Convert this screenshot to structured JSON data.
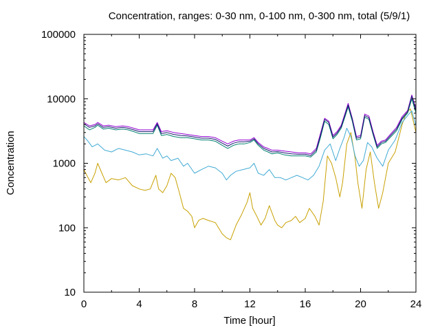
{
  "chart_data": {
    "type": "line",
    "title": "Concentration, ranges: 0-30 nm, 0-100 nm, 0-300 nm, total (5/9/1)",
    "xlabel": "Time [hour]",
    "ylabel": "Concentration",
    "xlim": [
      0,
      24
    ],
    "ylim": [
      10,
      100000
    ],
    "yscale": "log",
    "grid": false,
    "legend": "none",
    "x_ticks": [
      {
        "value": 0,
        "label": "0"
      },
      {
        "value": 4,
        "label": "4"
      },
      {
        "value": 8,
        "label": "8"
      },
      {
        "value": 12,
        "label": "12"
      },
      {
        "value": 16,
        "label": "16"
      },
      {
        "value": 20,
        "label": "20"
      },
      {
        "value": 24,
        "label": "24"
      }
    ],
    "y_ticks": [
      {
        "value": 10,
        "label": "10"
      },
      {
        "value": 100,
        "label": "100"
      },
      {
        "value": 1000,
        "label": "1000"
      },
      {
        "value": 10000,
        "label": "10000"
      },
      {
        "value": 100000,
        "label": "100000"
      }
    ],
    "series": [
      {
        "color": "#c8a000",
        "x": [
          0,
          0.3,
          0.5,
          0.8,
          1.0,
          1.3,
          1.6,
          2.0,
          2.5,
          3.0,
          3.5,
          4.0,
          4.4,
          4.8,
          5.2,
          5.4,
          5.7,
          6.0,
          6.3,
          6.6,
          6.9,
          7.2,
          7.5,
          7.8,
          8.0,
          8.3,
          8.6,
          9.0,
          9.5,
          10.0,
          10.3,
          10.6,
          11.0,
          11.4,
          11.8,
          12.0,
          12.2,
          12.5,
          12.8,
          13.1,
          13.4,
          13.8,
          14.0,
          14.3,
          14.6,
          15.0,
          15.3,
          15.6,
          16.0,
          16.3,
          16.7,
          17.0,
          17.3,
          17.6,
          17.9,
          18.2,
          18.5,
          18.7,
          19.0,
          19.3,
          19.6,
          19.8,
          20.1,
          20.4,
          20.7,
          21.0,
          21.3,
          21.6,
          22.0,
          22.5,
          23.0,
          23.3,
          23.6,
          24.0
        ],
        "y": [
          800,
          600,
          500,
          700,
          1000,
          700,
          500,
          580,
          550,
          600,
          450,
          400,
          380,
          400,
          650,
          400,
          350,
          450,
          700,
          600,
          350,
          200,
          180,
          150,
          100,
          130,
          140,
          130,
          120,
          80,
          70,
          65,
          110,
          160,
          250,
          350,
          200,
          150,
          110,
          140,
          220,
          130,
          110,
          100,
          120,
          130,
          150,
          120,
          140,
          200,
          150,
          110,
          260,
          1300,
          1000,
          600,
          300,
          500,
          2000,
          3000,
          1200,
          500,
          200,
          800,
          1500,
          500,
          200,
          350,
          1000,
          1500,
          4000,
          6000,
          7000,
          3000
        ]
      },
      {
        "color": "#40aad4",
        "x": [
          0,
          0.3,
          0.6,
          1.0,
          1.5,
          2.0,
          2.5,
          3.0,
          3.5,
          4.0,
          4.5,
          5.0,
          5.3,
          5.7,
          6.0,
          6.3,
          6.8,
          7.2,
          7.5,
          8.0,
          8.5,
          9.0,
          9.5,
          10.0,
          10.3,
          10.6,
          11.0,
          11.5,
          12.0,
          12.3,
          12.6,
          13.0,
          13.4,
          13.8,
          14.2,
          14.6,
          15.0,
          15.4,
          15.8,
          16.2,
          16.6,
          17.0,
          17.4,
          17.8,
          18.2,
          18.5,
          18.8,
          19.0,
          19.3,
          19.6,
          19.9,
          20.2,
          20.5,
          20.8,
          21.2,
          21.6,
          22.0,
          22.5,
          23.0,
          23.4,
          23.7,
          24.0
        ],
        "y": [
          2600,
          2200,
          1800,
          2000,
          1600,
          1500,
          1700,
          1600,
          1500,
          1350,
          1400,
          1300,
          1700,
          1200,
          1300,
          1100,
          1200,
          900,
          1000,
          700,
          800,
          900,
          850,
          700,
          550,
          650,
          750,
          800,
          850,
          1000,
          700,
          650,
          800,
          600,
          600,
          550,
          600,
          650,
          600,
          550,
          650,
          900,
          1600,
          2000,
          1100,
          1700,
          2500,
          3500,
          2600,
          1300,
          900,
          1100,
          2100,
          1800,
          1200,
          900,
          1600,
          2300,
          4300,
          5500,
          6500,
          3800
        ]
      },
      {
        "color": "#00806f",
        "x": [
          0,
          0.4,
          0.8,
          1.0,
          1.4,
          1.8,
          2.3,
          2.8,
          3.2,
          3.6,
          4.0,
          4.5,
          5.0,
          5.3,
          5.6,
          6.0,
          6.5,
          7.0,
          7.5,
          8.0,
          8.5,
          9.0,
          9.5,
          10.0,
          10.4,
          10.8,
          11.2,
          11.6,
          12.0,
          12.3,
          12.6,
          13.0,
          13.3,
          13.6,
          14.0,
          14.5,
          15.0,
          15.5,
          16.0,
          16.4,
          16.8,
          17.1,
          17.4,
          17.7,
          18.0,
          18.3,
          18.6,
          18.9,
          19.1,
          19.4,
          19.7,
          20.0,
          20.3,
          20.6,
          20.9,
          21.2,
          21.5,
          21.8,
          22.2,
          22.6,
          23.0,
          23.4,
          23.7,
          24.0
        ],
        "y": [
          3800,
          3300,
          3600,
          3900,
          3400,
          3500,
          3300,
          3400,
          3300,
          3100,
          2900,
          2900,
          2900,
          3900,
          2700,
          2800,
          2600,
          2500,
          2500,
          2400,
          2300,
          2300,
          2200,
          1900,
          1700,
          1900,
          2000,
          2000,
          2100,
          2300,
          1900,
          1600,
          1500,
          1400,
          1450,
          1350,
          1300,
          1300,
          1300,
          1250,
          1500,
          2500,
          4500,
          4000,
          2400,
          2800,
          3500,
          5500,
          7500,
          4500,
          2300,
          2400,
          5200,
          4800,
          2800,
          1700,
          2000,
          2100,
          2600,
          3200,
          4800,
          6000,
          10000,
          6000
        ]
      },
      {
        "color": "#9400d3",
        "x": [
          0,
          0.4,
          0.8,
          1.0,
          1.4,
          1.8,
          2.3,
          2.8,
          3.2,
          3.6,
          4.0,
          4.5,
          5.0,
          5.3,
          5.6,
          6.0,
          6.5,
          7.0,
          7.5,
          8.0,
          8.5,
          9.0,
          9.5,
          10.0,
          10.4,
          10.8,
          11.2,
          11.6,
          12.0,
          12.3,
          12.6,
          13.0,
          13.3,
          13.6,
          14.0,
          14.5,
          15.0,
          15.5,
          16.0,
          16.4,
          16.8,
          17.1,
          17.4,
          17.7,
          18.0,
          18.3,
          18.6,
          18.9,
          19.1,
          19.4,
          19.7,
          20.0,
          20.3,
          20.6,
          20.9,
          21.2,
          21.5,
          21.8,
          22.2,
          22.6,
          23.0,
          23.4,
          23.7,
          24.0
        ],
        "y": [
          4300,
          3800,
          4000,
          4300,
          3800,
          3900,
          3700,
          3800,
          3700,
          3500,
          3300,
          3300,
          3300,
          4300,
          3100,
          3200,
          3000,
          2900,
          2800,
          2700,
          2600,
          2600,
          2500,
          2200,
          2000,
          2200,
          2300,
          2300,
          2300,
          2500,
          2100,
          1800,
          1700,
          1600,
          1600,
          1550,
          1500,
          1450,
          1450,
          1400,
          1700,
          2900,
          5000,
          4500,
          2700,
          3100,
          3900,
          6200,
          8500,
          5000,
          2600,
          2700,
          5800,
          5400,
          3100,
          1900,
          2200,
          2300,
          2900,
          3600,
          5300,
          6600,
          11500,
          7000
        ]
      },
      {
        "color": "#191970",
        "x": [
          0,
          0.4,
          0.8,
          1.0,
          1.4,
          1.8,
          2.3,
          2.8,
          3.2,
          3.6,
          4.0,
          4.5,
          5.0,
          5.3,
          5.6,
          6.0,
          6.5,
          7.0,
          7.5,
          8.0,
          8.5,
          9.0,
          9.5,
          10.0,
          10.4,
          10.8,
          11.2,
          11.6,
          12.0,
          12.3,
          12.6,
          13.0,
          13.3,
          13.6,
          14.0,
          14.5,
          15.0,
          15.5,
          16.0,
          16.4,
          16.8,
          17.1,
          17.4,
          17.7,
          18.0,
          18.3,
          18.6,
          18.9,
          19.1,
          19.4,
          19.7,
          20.0,
          20.3,
          20.6,
          20.9,
          21.2,
          21.5,
          21.8,
          22.2,
          22.6,
          23.0,
          23.4,
          23.7,
          24.0
        ],
        "y": [
          4100,
          3600,
          3800,
          4100,
          3600,
          3700,
          3500,
          3600,
          3500,
          3300,
          3100,
          3100,
          3100,
          4100,
          2900,
          3000,
          2800,
          2700,
          2650,
          2550,
          2450,
          2450,
          2350,
          2050,
          1850,
          2050,
          2150,
          2150,
          2200,
          2400,
          2000,
          1700,
          1600,
          1500,
          1520,
          1450,
          1400,
          1380,
          1380,
          1320,
          1600,
          2700,
          4800,
          4300,
          2550,
          2950,
          3700,
          5900,
          8000,
          4800,
          2450,
          2550,
          5500,
          5100,
          2950,
          1800,
          2100,
          2200,
          2750,
          3400,
          5000,
          6300,
          11000,
          6500
        ]
      }
    ]
  }
}
